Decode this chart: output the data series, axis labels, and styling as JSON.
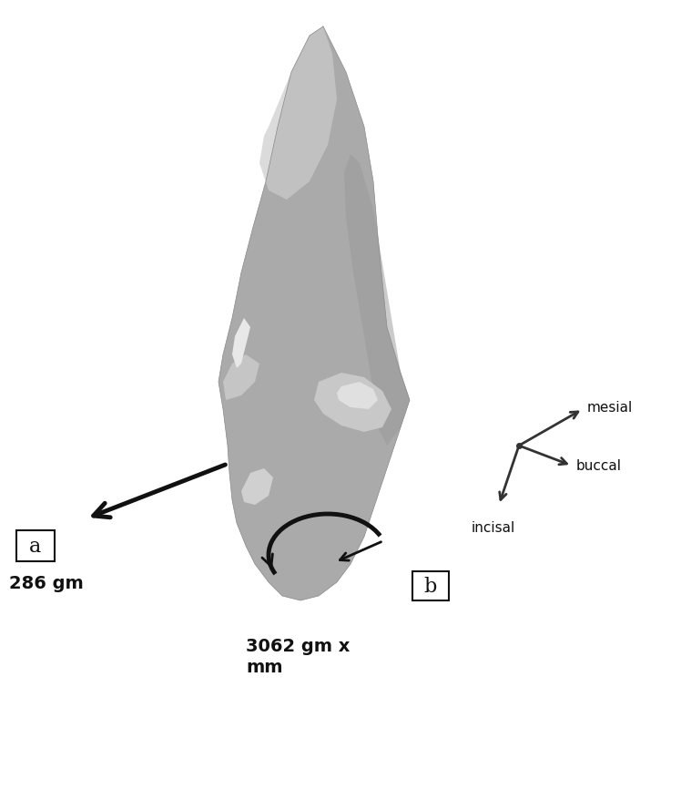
{
  "background_color": "#ffffff",
  "tooth_color": "#b0b0b0",
  "tooth_highlight": "#d8d8d8",
  "tooth_shadow": "#888888",
  "arrow_color": "#111111",
  "text_color": "#111111",
  "label_a_text": "a",
  "label_b_text": "b",
  "force_label": "286 gm",
  "moment_label": "3062 gm x\nmm",
  "axis_labels": [
    "mesial",
    "buccal",
    "incisal"
  ],
  "fig_width": 7.48,
  "fig_height": 8.79,
  "dpi": 100
}
